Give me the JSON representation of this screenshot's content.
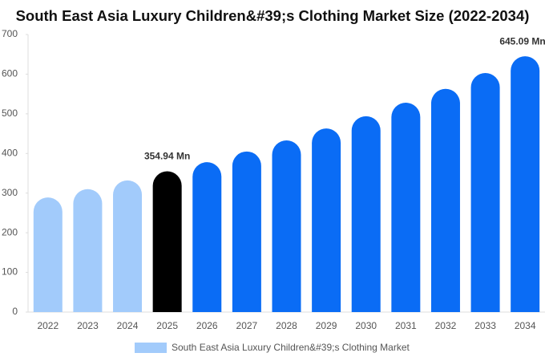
{
  "chart_data": {
    "type": "bar",
    "title": "South East Asia Luxury Children&#39;s Clothing Market Size (2022-2034)",
    "categories": [
      "2022",
      "2023",
      "2024",
      "2025",
      "2026",
      "2027",
      "2028",
      "2029",
      "2030",
      "2031",
      "2032",
      "2033",
      "2034"
    ],
    "series": [
      {
        "name": "South East Asia Luxury Children&#39;s Clothing Market",
        "color": "#a2cbfb",
        "values": [
          289,
          310,
          332,
          354.94,
          378,
          405,
          433,
          463,
          494,
          528,
          563,
          603,
          645.09
        ],
        "value_labels": [
          null,
          null,
          null,
          "354.94 Mn",
          null,
          null,
          null,
          null,
          null,
          null,
          null,
          null,
          "645.09 Mn"
        ],
        "colors": [
          "#a2cbfb",
          "#a2cbfb",
          "#a2cbfb",
          "#000000",
          "#0a6cf5",
          "#0a6cf5",
          "#0a6cf5",
          "#0a6cf5",
          "#0a6cf5",
          "#0a6cf5",
          "#0a6cf5",
          "#0a6cf5",
          "#0a6cf5"
        ]
      }
    ],
    "ylim": [
      0,
      700
    ],
    "yticks": [
      0,
      100,
      200,
      300,
      400,
      500,
      600,
      700
    ],
    "grid": false
  }
}
